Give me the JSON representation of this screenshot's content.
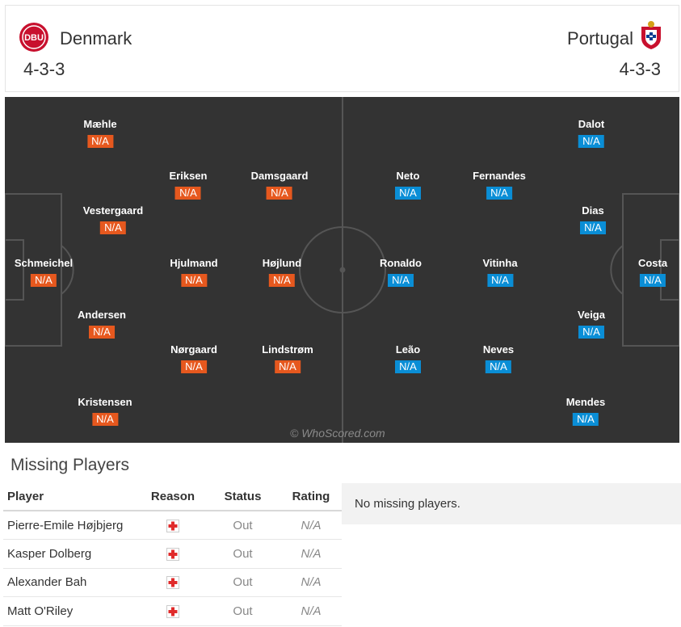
{
  "header": {
    "home": {
      "name": "Denmark",
      "formation": "4-3-3",
      "crest_icon": "denmark-crest-icon",
      "crest_text": "DBU"
    },
    "away": {
      "name": "Portugal",
      "formation": "4-3-3",
      "crest_icon": "portugal-crest-icon"
    }
  },
  "colors": {
    "home_rating": "#e6581e",
    "away_rating": "#0a8ed6",
    "pitch": "#333333"
  },
  "pitch": {
    "watermark": "© WhoScored.com",
    "home_players": [
      {
        "name": "Mæhle",
        "rating": "N/A"
      },
      {
        "name": "Eriksen",
        "rating": "N/A"
      },
      {
        "name": "Damsgaard",
        "rating": "N/A"
      },
      {
        "name": "Vestergaard",
        "rating": "N/A"
      },
      {
        "name": "Schmeichel",
        "rating": "N/A"
      },
      {
        "name": "Hjulmand",
        "rating": "N/A"
      },
      {
        "name": "Højlund",
        "rating": "N/A"
      },
      {
        "name": "Andersen",
        "rating": "N/A"
      },
      {
        "name": "Nørgaard",
        "rating": "N/A"
      },
      {
        "name": "Lindstrøm",
        "rating": "N/A"
      },
      {
        "name": "Kristensen",
        "rating": "N/A"
      }
    ],
    "away_players": [
      {
        "name": "Dalot",
        "rating": "N/A"
      },
      {
        "name": "Neto",
        "rating": "N/A"
      },
      {
        "name": "Fernandes",
        "rating": "N/A"
      },
      {
        "name": "Dias",
        "rating": "N/A"
      },
      {
        "name": "Ronaldo",
        "rating": "N/A"
      },
      {
        "name": "Vitinha",
        "rating": "N/A"
      },
      {
        "name": "Costa",
        "rating": "N/A"
      },
      {
        "name": "Veiga",
        "rating": "N/A"
      },
      {
        "name": "Leão",
        "rating": "N/A"
      },
      {
        "name": "Neves",
        "rating": "N/A"
      },
      {
        "name": "Mendes",
        "rating": "N/A"
      }
    ]
  },
  "missing": {
    "title": "Missing Players",
    "columns": [
      "Player",
      "Reason",
      "Status",
      "Rating"
    ],
    "rows": [
      {
        "player": "Pierre-Emile Højbjerg",
        "reason_icon": "injury-cross-icon",
        "status": "Out",
        "rating": "N/A"
      },
      {
        "player": "Kasper Dolberg",
        "reason_icon": "injury-cross-icon",
        "status": "Out",
        "rating": "N/A"
      },
      {
        "player": "Alexander Bah",
        "reason_icon": "injury-cross-icon",
        "status": "Out",
        "rating": "N/A"
      },
      {
        "player": "Matt O'Riley",
        "reason_icon": "injury-cross-icon",
        "status": "Out",
        "rating": "N/A"
      }
    ],
    "away_message": "No missing players."
  }
}
